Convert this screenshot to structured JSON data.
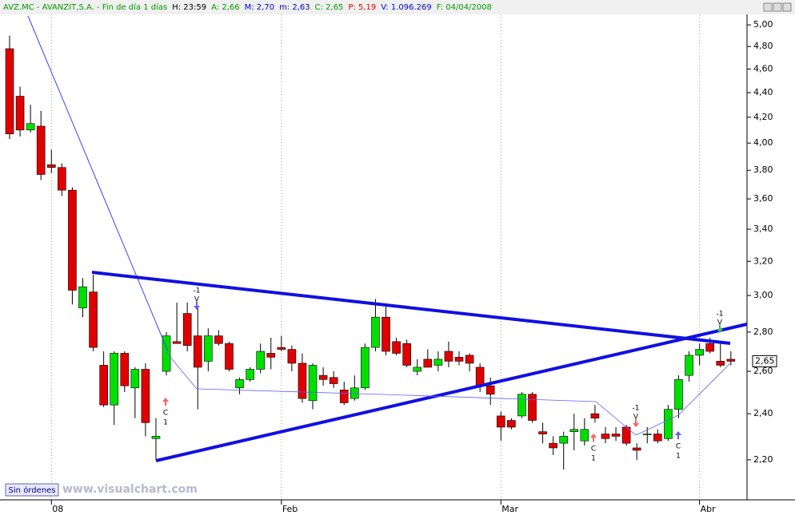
{
  "header": [
    "AVZ.MC - AVANZIT,S.A. - Fin de día 1 días",
    "H: 23:59",
    "A: 2,66",
    "M: 2,70",
    "m: 2,63",
    "C: 2,65",
    "P: 5,19",
    "V: 1.096.269",
    "F: 04/04/2008"
  ],
  "chart_data": {
    "type": "candlestick",
    "log_scale": true,
    "categories": [
      null,
      null,
      null,
      null,
      "08",
      null,
      null,
      null,
      null,
      null,
      null,
      null,
      null,
      null,
      null,
      null,
      null,
      null,
      null,
      null,
      null,
      null,
      null,
      null,
      null,
      null,
      "Feb",
      null,
      null,
      null,
      null,
      null,
      null,
      null,
      null,
      null,
      null,
      null,
      null,
      null,
      null,
      null,
      null,
      null,
      null,
      null,
      null,
      "Mar",
      null,
      null,
      null,
      null,
      null,
      null,
      null,
      null,
      null,
      null,
      null,
      null,
      null,
      null,
      null,
      null,
      null,
      null,
      "Abr",
      null,
      null,
      null
    ],
    "open": [
      4.78,
      4.37,
      4.1,
      4.13,
      3.84,
      3.82,
      3.66,
      2.93,
      3.02,
      2.63,
      2.44,
      2.69,
      2.52,
      2.61,
      2.29,
      2.6,
      2.75,
      2.9,
      2.78,
      2.65,
      2.78,
      2.74,
      2.52,
      2.56,
      2.61,
      2.69,
      2.72,
      2.71,
      2.64,
      2.46,
      2.58,
      2.57,
      2.51,
      2.47,
      2.52,
      2.72,
      2.88,
      2.75,
      2.74,
      2.6,
      2.66,
      2.63,
      2.7,
      2.67,
      2.68,
      2.62,
      2.53,
      2.39,
      2.37,
      2.39,
      2.49,
      2.32,
      2.27,
      2.27,
      2.32,
      2.28,
      2.4,
      2.31,
      2.31,
      2.34,
      2.25,
      2.31,
      2.31,
      2.29,
      2.42,
      2.58,
      2.68,
      2.74,
      2.65,
      2.66
    ],
    "high": [
      4.9,
      4.45,
      4.3,
      4.25,
      3.95,
      3.85,
      3.68,
      3.1,
      3.12,
      2.7,
      2.7,
      2.7,
      2.62,
      2.64,
      2.38,
      2.8,
      2.96,
      2.96,
      2.94,
      2.82,
      2.81,
      2.75,
      2.57,
      2.62,
      2.74,
      2.77,
      2.78,
      2.73,
      2.69,
      2.64,
      2.62,
      2.6,
      2.55,
      2.58,
      2.74,
      2.98,
      2.94,
      2.77,
      2.76,
      2.66,
      2.71,
      2.7,
      2.75,
      2.7,
      2.69,
      2.64,
      2.57,
      2.41,
      2.38,
      2.5,
      2.5,
      2.36,
      2.3,
      2.32,
      2.4,
      2.38,
      2.44,
      2.34,
      2.34,
      2.35,
      2.27,
      2.34,
      2.33,
      2.44,
      2.58,
      2.7,
      2.74,
      2.77,
      2.75,
      2.7
    ],
    "low": [
      4.03,
      4.05,
      4.08,
      3.73,
      3.78,
      3.62,
      2.95,
      2.88,
      2.7,
      2.43,
      2.35,
      2.5,
      2.38,
      2.3,
      2.2,
      2.58,
      2.74,
      2.7,
      2.42,
      2.6,
      2.73,
      2.6,
      2.49,
      2.55,
      2.59,
      2.61,
      2.7,
      2.6,
      2.45,
      2.42,
      2.53,
      2.52,
      2.44,
      2.46,
      2.51,
      2.7,
      2.68,
      2.68,
      2.62,
      2.58,
      2.62,
      2.6,
      2.62,
      2.63,
      2.6,
      2.5,
      2.44,
      2.28,
      2.33,
      2.38,
      2.36,
      2.27,
      2.22,
      2.16,
      2.24,
      2.26,
      2.36,
      2.27,
      2.28,
      2.26,
      2.2,
      2.27,
      2.27,
      2.28,
      2.38,
      2.55,
      2.63,
      2.69,
      2.62,
      2.63
    ],
    "close": [
      4.07,
      4.1,
      4.15,
      3.77,
      3.82,
      3.66,
      3.03,
      3.05,
      2.72,
      2.44,
      2.69,
      2.53,
      2.61,
      2.36,
      2.3,
      2.78,
      2.74,
      2.73,
      2.62,
      2.78,
      2.74,
      2.61,
      2.56,
      2.61,
      2.7,
      2.67,
      2.71,
      2.64,
      2.47,
      2.63,
      2.56,
      2.54,
      2.45,
      2.52,
      2.72,
      2.88,
      2.7,
      2.69,
      2.63,
      2.62,
      2.62,
      2.66,
      2.65,
      2.65,
      2.64,
      2.53,
      2.49,
      2.34,
      2.34,
      2.49,
      2.37,
      2.31,
      2.25,
      2.3,
      2.33,
      2.33,
      2.38,
      2.29,
      2.3,
      2.27,
      2.24,
      2.31,
      2.28,
      2.42,
      2.56,
      2.68,
      2.71,
      2.7,
      2.63,
      2.65
    ],
    "up_color": "#00e000",
    "down_color": "#e00000",
    "ylim": [
      2.04,
      5.1
    ],
    "yticks": [
      {
        "value": 2.2,
        "label": "2,20"
      },
      {
        "value": 2.4,
        "label": "2,40"
      },
      {
        "value": 2.6,
        "label": "2,60"
      },
      {
        "value": 2.8,
        "label": "2,80"
      },
      {
        "value": 3.0,
        "label": "3,00"
      },
      {
        "value": 3.2,
        "label": "3,20"
      },
      {
        "value": 3.4,
        "label": "3,40"
      },
      {
        "value": 3.6,
        "label": "3,60"
      },
      {
        "value": 3.8,
        "label": "3,80"
      },
      {
        "value": 4.0,
        "label": "4,00"
      },
      {
        "value": 4.2,
        "label": "4,20"
      },
      {
        "value": 4.4,
        "label": "4,40"
      },
      {
        "value": 4.6,
        "label": "4,60"
      },
      {
        "value": 4.8,
        "label": "4,80"
      },
      {
        "value": 5.0,
        "label": "5,00"
      }
    ],
    "last_price": {
      "value": 2.65,
      "label": "2,65"
    },
    "signals": [
      {
        "side": "C",
        "qty": 1
      },
      {
        "side": "V",
        "qty": -1
      },
      {
        "side": "C",
        "qty": 1
      },
      {
        "side": "V",
        "qty": -1
      },
      {
        "side": "C",
        "qty": 1
      },
      {
        "side": "V",
        "qty": -1
      }
    ]
  },
  "footer": {
    "status": "Sin órdenes",
    "brand": "www.visualchart.com"
  }
}
